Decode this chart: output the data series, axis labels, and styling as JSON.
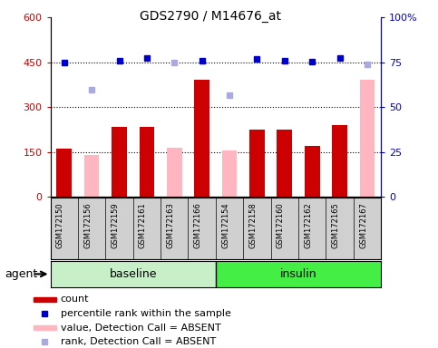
{
  "title": "GDS2790 / M14676_at",
  "samples": [
    "GSM172150",
    "GSM172156",
    "GSM172159",
    "GSM172161",
    "GSM172163",
    "GSM172166",
    "GSM172154",
    "GSM172158",
    "GSM172160",
    "GSM172162",
    "GSM172165",
    "GSM172167"
  ],
  "baseline_count": 6,
  "insulin_count": 6,
  "baseline_color": "#c8f0c8",
  "insulin_color": "#44ee44",
  "count_values": [
    160,
    null,
    235,
    235,
    null,
    390,
    null,
    225,
    225,
    170,
    240,
    null
  ],
  "count_absent_values": [
    null,
    140,
    null,
    null,
    165,
    null,
    155,
    null,
    null,
    null,
    null,
    390
  ],
  "percentile_values": [
    448,
    null,
    455,
    465,
    null,
    455,
    null,
    460,
    455,
    453,
    465,
    null
  ],
  "rank_absent_values": [
    null,
    358,
    null,
    null,
    450,
    null,
    340,
    null,
    null,
    null,
    null,
    443
  ],
  "ylim_left": [
    0,
    600
  ],
  "yticks_left": [
    0,
    150,
    300,
    450,
    600
  ],
  "ytick_labels_left": [
    "0",
    "150",
    "300",
    "450",
    "600"
  ],
  "ytick_labels_right": [
    "0",
    "25",
    "50",
    "75",
    "100%"
  ],
  "hlines": [
    150,
    300,
    450
  ],
  "bar_color": "#cc0000",
  "bar_absent_color": "#ffb6c1",
  "dot_color": "#0000cc",
  "dot_absent_color": "#aaaadd",
  "left_axis_color": "#cc0000",
  "right_axis_color": "#0000cc",
  "legend_items": [
    {
      "label": "count",
      "color": "#cc0000",
      "type": "bar"
    },
    {
      "label": "percentile rank within the sample",
      "color": "#0000cc",
      "type": "dot"
    },
    {
      "label": "value, Detection Call = ABSENT",
      "color": "#ffb6c1",
      "type": "bar"
    },
    {
      "label": "rank, Detection Call = ABSENT",
      "color": "#aaaadd",
      "type": "dot"
    }
  ],
  "agent_label": "agent",
  "bar_width": 0.55
}
